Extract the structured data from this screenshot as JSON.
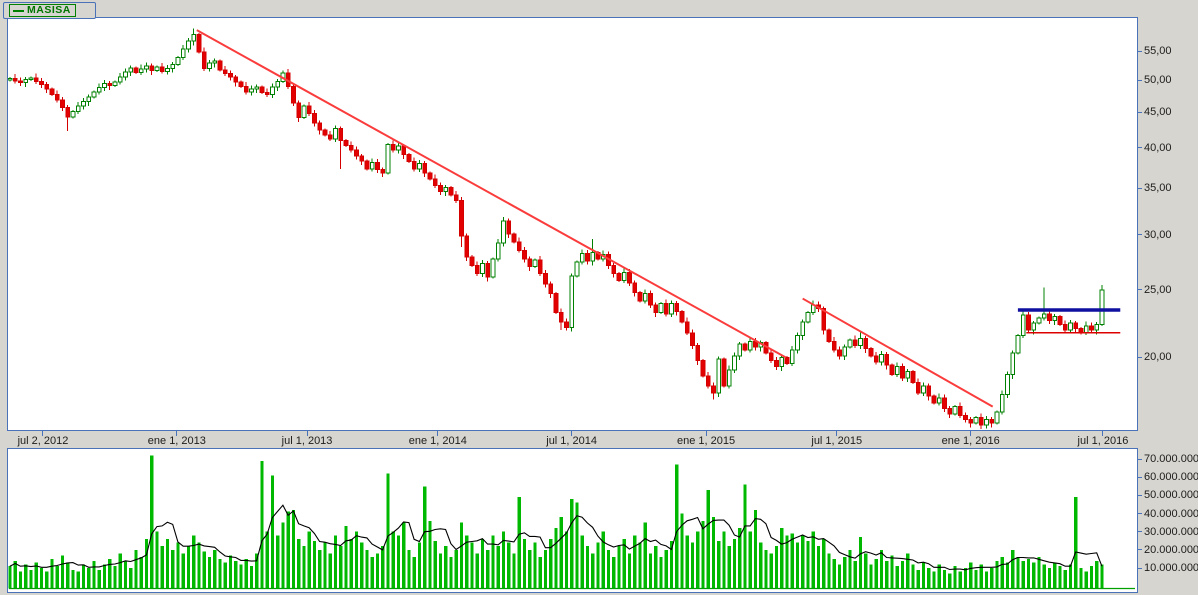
{
  "window": {
    "background": "#d7d5cf",
    "pane_border": "#4a72b8"
  },
  "legend": {
    "label": "MASISA",
    "color": "#007500"
  },
  "chart_data": {
    "type": "candlestick+volume",
    "symbol": "MASISA",
    "timeframe": "weekly",
    "grid": false,
    "price_axis": {
      "side": "right",
      "scale": "log",
      "decimal_format": "comma",
      "ticks": [
        {
          "label": "55,00",
          "value": 55
        },
        {
          "label": "50,00",
          "value": 50
        },
        {
          "label": "45,00",
          "value": 45
        },
        {
          "label": "40,00",
          "value": 40
        },
        {
          "label": "35,00",
          "value": 35
        },
        {
          "label": "30,00",
          "value": 30
        },
        {
          "label": "25,00",
          "value": 25
        },
        {
          "label": "20,00",
          "value": 20
        }
      ]
    },
    "volume_axis": {
      "side": "right",
      "ticks": [
        {
          "label": "70.000.000",
          "value": 70
        },
        {
          "label": "60.000.000",
          "value": 60
        },
        {
          "label": "50.000.000",
          "value": 50
        },
        {
          "label": "40.000.000",
          "value": 40
        },
        {
          "label": "30.000.000",
          "value": 30
        },
        {
          "label": "20.000.000",
          "value": 20
        },
        {
          "label": "10.000.000",
          "value": 10
        }
      ]
    },
    "x_axis": {
      "ticks": [
        {
          "label": "jul 2, 2012",
          "index": 6.3
        },
        {
          "label": "ene 1, 2013",
          "index": 31.8
        },
        {
          "label": "jul 1, 2013",
          "index": 56.6
        },
        {
          "label": "ene 1, 2014",
          "index": 81.5
        },
        {
          "label": "jul 1, 2014",
          "index": 107.0
        },
        {
          "label": "ene 1, 2015",
          "index": 132.6
        },
        {
          "label": "jul 1, 2015",
          "index": 157.5
        },
        {
          "label": "ene 1, 2016",
          "index": 183.0
        },
        {
          "label": "jul 1, 2016",
          "index": 208.2
        }
      ]
    },
    "weeks": {
      "closes": [
        50.3,
        49.9,
        49.6,
        50.1,
        50.4,
        49.8,
        49.3,
        48.6,
        47.7,
        46.8,
        45.7,
        44.3,
        45.1,
        45.9,
        46.6,
        47.3,
        48.1,
        48.8,
        49.5,
        49.1,
        49.7,
        50.5,
        51.4,
        52.1,
        51.3,
        51.9,
        52.4,
        51.6,
        52.2,
        51.5,
        52.0,
        52.7,
        53.9,
        55.4,
        56.9,
        58.2,
        54.9,
        52.0,
        52.9,
        53.3,
        51.7,
        51.1,
        50.5,
        49.7,
        49.0,
        48.1,
        48.6,
        48.9,
        48.0,
        47.7,
        48.9,
        49.8,
        51.2,
        49.0,
        46.4,
        44.2,
        45.9,
        44.8,
        43.4,
        42.4,
        41.7,
        41.2,
        42.6,
        41.0,
        40.3,
        39.7,
        38.9,
        38.3,
        37.3,
        38.1,
        37.2,
        36.8,
        40.4,
        39.7,
        40.2,
        39.1,
        38.2,
        37.3,
        38.0,
        36.8,
        36.1,
        35.3,
        34.6,
        35.1,
        34.2,
        33.6,
        29.9,
        27.9,
        27.1,
        26.4,
        27.3,
        26.1,
        27.7,
        29.2,
        31.4,
        30.1,
        29.3,
        28.5,
        27.7,
        27.0,
        27.6,
        26.4,
        25.5,
        24.7,
        23.2,
        22.5,
        22.1,
        26.2,
        27.4,
        28.2,
        27.5,
        28.3,
        27.7,
        28.1,
        27.1,
        26.4,
        25.8,
        26.5,
        25.6,
        24.8,
        24.1,
        24.7,
        23.8,
        23.2,
        23.9,
        23.1,
        23.9,
        23.3,
        22.5,
        21.7,
        20.8,
        19.8,
        18.8,
        18.2,
        17.8,
        19.9,
        18.2,
        19.2,
        20.1,
        20.9,
        20.5,
        21.1,
        20.7,
        21.0,
        20.3,
        19.8,
        19.4,
        20.0,
        19.6,
        20.5,
        21.5,
        22.5,
        23.2,
        23.8,
        23.5,
        21.9,
        21.1,
        20.5,
        20.1,
        20.7,
        21.2,
        20.8,
        21.3,
        20.6,
        20.1,
        19.7,
        20.2,
        19.5,
        18.9,
        19.4,
        18.7,
        19.1,
        18.4,
        17.8,
        18.2,
        17.6,
        17.2,
        17.5,
        16.9,
        16.6,
        17.0,
        16.5,
        16.3,
        16.1,
        16.4,
        16.0,
        16.3,
        16.1,
        16.7,
        17.7,
        18.9,
        20.3,
        21.5,
        23.0,
        21.9,
        22.4,
        22.8,
        23.1,
        22.6,
        22.9,
        22.3,
        21.9,
        22.4,
        22.0,
        21.7,
        22.2,
        21.9,
        22.3,
        25.0
      ],
      "volumes_millions": [
        11,
        14,
        8,
        12,
        9,
        13,
        10,
        8,
        15,
        11,
        17,
        13,
        9,
        8,
        12,
        10,
        14,
        9,
        12,
        15,
        11,
        18,
        14,
        10,
        20,
        16,
        26,
        72,
        30,
        22,
        26,
        20,
        24,
        18,
        22,
        28,
        24,
        19,
        16,
        20,
        15,
        13,
        17,
        14,
        12,
        15,
        11,
        18,
        69,
        30,
        61,
        28,
        35,
        41,
        42,
        26,
        22,
        30,
        25,
        20,
        24,
        18,
        28,
        22,
        33,
        26,
        30,
        24,
        20,
        16,
        18,
        22,
        62,
        30,
        28,
        35,
        20,
        16,
        24,
        55,
        36,
        25,
        18,
        22,
        16,
        20,
        35,
        28,
        24,
        18,
        26,
        20,
        28,
        22,
        30,
        24,
        18,
        49,
        26,
        20,
        24,
        16,
        20,
        26,
        32,
        38,
        30,
        48,
        46,
        28,
        22,
        18,
        24,
        30,
        20,
        16,
        22,
        26,
        18,
        28,
        24,
        35,
        18,
        22,
        16,
        20,
        25,
        67,
        40,
        28,
        24,
        30,
        36,
        53,
        38,
        25,
        30,
        22,
        26,
        32,
        56,
        30,
        42,
        24,
        20,
        18,
        22,
        32,
        28,
        29,
        24,
        28,
        25,
        30,
        22,
        26,
        18,
        15,
        12,
        16,
        20,
        14,
        27,
        18,
        12,
        15,
        20,
        14,
        17,
        11,
        14,
        18,
        12,
        9,
        13,
        10,
        8,
        12,
        9,
        7,
        11,
        8,
        10,
        13,
        9,
        12,
        8,
        10,
        14,
        16,
        13,
        20,
        16,
        14,
        15,
        13,
        16,
        12,
        10,
        13,
        11,
        9,
        12,
        49,
        10,
        8,
        11,
        14,
        12
      ]
    },
    "wick_overrides": {
      "high": {
        "35": 59.3,
        "52": 51.6,
        "94": 31.8,
        "111": 29.6,
        "162": 21.8,
        "197": 25.2,
        "208": 25.4
      },
      "low": {
        "11": 42.3,
        "63": 37.3,
        "86": 28.8,
        "91": 25.7,
        "105": 21.9,
        "134": 17.4,
        "185": 15.8
      }
    },
    "overlays": {
      "trendlines": [
        {
          "from": {
            "index": 35.6,
            "price": 59.0
          },
          "to": {
            "index": 147.8,
            "price": 20.0
          },
          "color": "#fa3c3c",
          "width": 2
        },
        {
          "from": {
            "index": 151.0,
            "price": 24.3
          },
          "to": {
            "index": 187.2,
            "price": 17.0
          },
          "color": "#fa3c3c",
          "width": 2
        }
      ],
      "horizontal_lines": [
        {
          "price": 23.4,
          "from_index": 192.0,
          "to_index": 211.5,
          "color": "#0f0fa0",
          "width": 3.5
        },
        {
          "price": 21.7,
          "from_index": 193.6,
          "to_index": 211.5,
          "color": "#dd0000",
          "width": 1.5
        }
      ]
    },
    "volume_ma": {
      "type": "sma",
      "period": 5,
      "color": "#000000"
    },
    "colors": {
      "up_candle": "#008000",
      "up_fill": "#ffffff",
      "down_candle": "#d40000",
      "down_fill": "#e30000",
      "volume_bar": "#00b800",
      "volume_baseline": "#00a000",
      "tick": "#4a72b8",
      "label": "#1c1c1c"
    }
  }
}
